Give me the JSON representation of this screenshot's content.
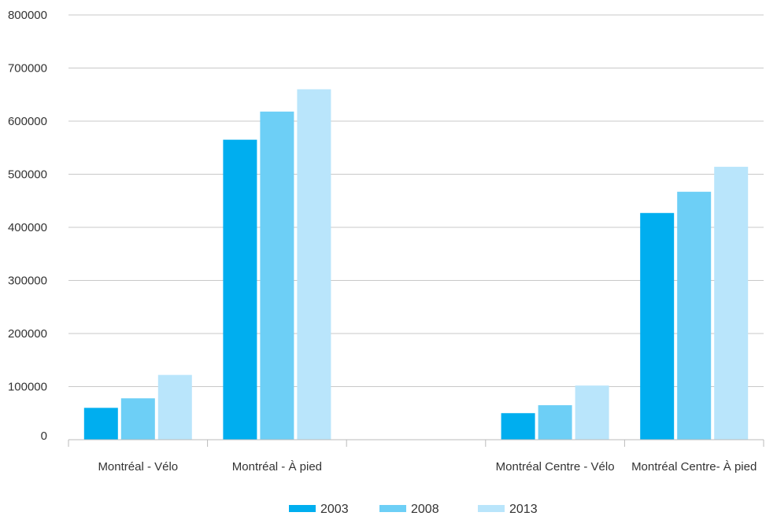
{
  "chart_data": {
    "type": "bar",
    "title": "",
    "xlabel": "",
    "ylabel": "",
    "ylim": [
      0,
      800000
    ],
    "yticks": [
      0,
      100000,
      200000,
      300000,
      400000,
      500000,
      600000,
      700000,
      800000
    ],
    "ytick_labels": [
      "0",
      "100000",
      "200000",
      "300000",
      "400000",
      "500000",
      "600000",
      "700000",
      "800000"
    ],
    "grid": true,
    "legend_position": "bottom",
    "categories": [
      "Montréal - Vélo",
      "Montréal - À pied",
      "",
      "Montréal Centre - Vélo",
      "Montréal Centre- À pied"
    ],
    "series": [
      {
        "name": "2003",
        "color": "#00aeef",
        "values": [
          60000,
          565000,
          null,
          50000,
          427000
        ]
      },
      {
        "name": "2008",
        "color": "#6dcff6",
        "values": [
          78000,
          618000,
          null,
          65000,
          467000
        ]
      },
      {
        "name": "2013",
        "color": "#b9e5fb",
        "values": [
          122000,
          660000,
          null,
          102000,
          514000
        ]
      }
    ]
  }
}
